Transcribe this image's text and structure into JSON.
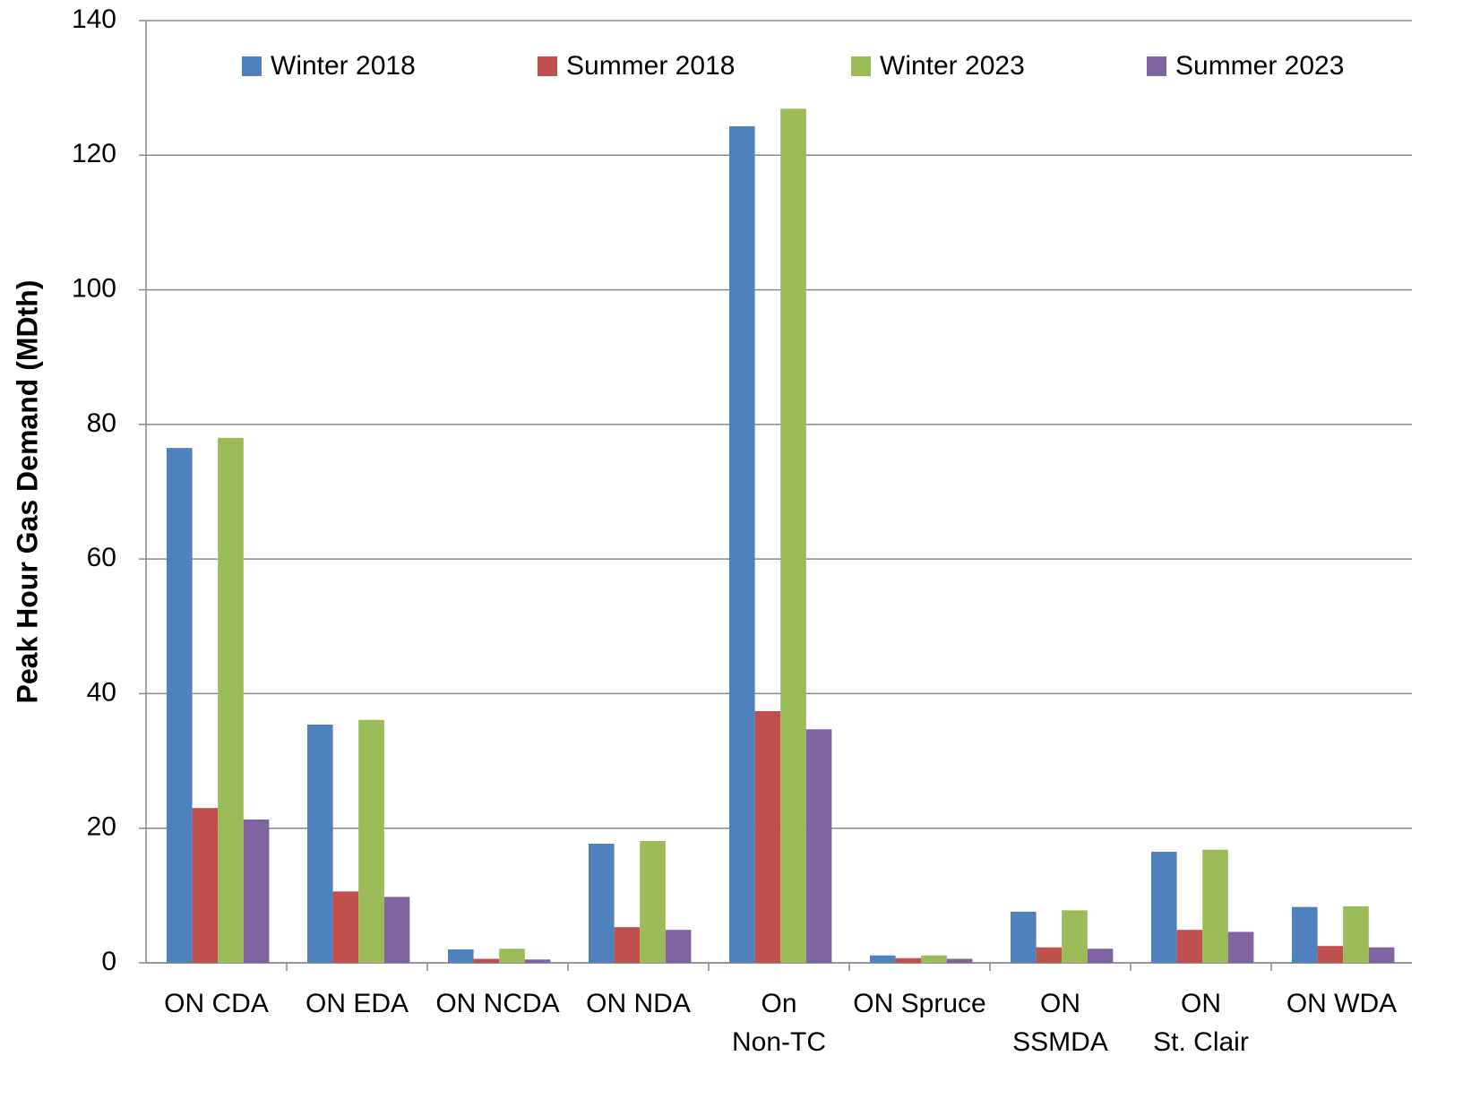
{
  "chart_data": {
    "type": "bar",
    "ylabel": "Peak Hour Gas Demand (MDth)",
    "categories": [
      "ON CDA",
      "ON EDA",
      "ON NCDA",
      "ON NDA",
      [
        "On",
        "Non-TC"
      ],
      "ON Spruce",
      [
        "ON",
        "SSMDA"
      ],
      [
        "ON",
        "St. Clair"
      ],
      "ON WDA"
    ],
    "series": [
      {
        "name": "Winter 2018",
        "color": "#4f81bd",
        "values": [
          76.5,
          35.4,
          2.0,
          17.7,
          124.3,
          1.1,
          7.6,
          16.5,
          8.3
        ]
      },
      {
        "name": "Summer 2018",
        "color": "#c0504d",
        "values": [
          23,
          10.6,
          0.6,
          5.3,
          37.4,
          0.7,
          2.3,
          4.9,
          2.5
        ]
      },
      {
        "name": "Winter 2023",
        "color": "#9bbb59",
        "values": [
          78,
          36.1,
          2.1,
          18.1,
          126.9,
          1.1,
          7.8,
          16.8,
          8.4
        ]
      },
      {
        "name": "Summer 2023",
        "color": "#8064a2",
        "values": [
          21.3,
          9.8,
          0.5,
          4.9,
          34.7,
          0.6,
          2.1,
          4.6,
          2.3
        ]
      }
    ],
    "ylim": [
      0,
      140
    ],
    "yticks": [
      0,
      20,
      40,
      60,
      80,
      100,
      120,
      140
    ],
    "grid": true,
    "legend": "top"
  }
}
